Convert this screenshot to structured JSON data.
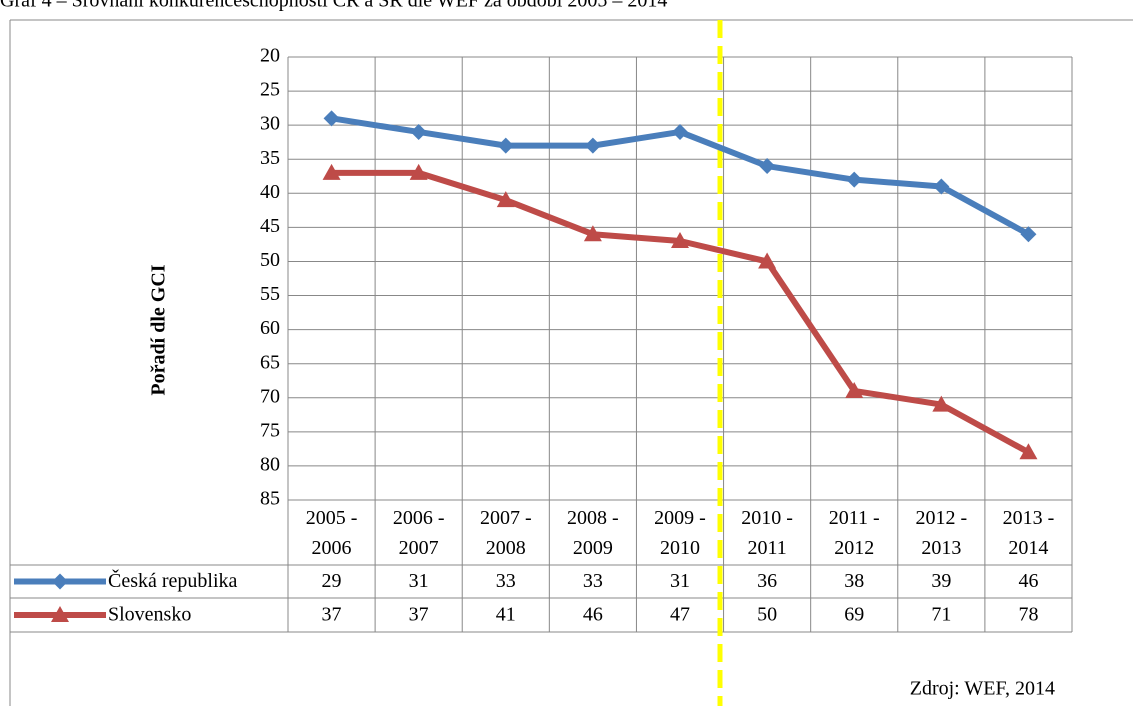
{
  "chart_data": {
    "type": "line",
    "title": "Graf 4 – Srovnání konkurenceschopnosti ČR a SR dle WEF za období 2005 – 2014",
    "y_label": "Pořadí dle GCI",
    "source": "Zdroj: WEF, 2014",
    "categories": [
      "2005 - 2006",
      "2006 - 2007",
      "2007 - 2008",
      "2008 - 2009",
      "2009 - 2010",
      "2010 - 2011",
      "2011 - 2012",
      "2012 - 2013",
      "2013 - 2014"
    ],
    "series": [
      {
        "name": "Česká republika",
        "color": "#4a7ebb",
        "marker": "diamond",
        "values": [
          29,
          31,
          33,
          33,
          31,
          36,
          38,
          39,
          46
        ]
      },
      {
        "name": "Slovensko",
        "color": "#be4b48",
        "marker": "triangle",
        "values": [
          37,
          37,
          41,
          46,
          47,
          50,
          69,
          71,
          78
        ]
      }
    ],
    "ylim": [
      20,
      85
    ],
    "y_inverted": true,
    "yticks": [
      20,
      25,
      30,
      35,
      40,
      45,
      50,
      55,
      60,
      65,
      70,
      75,
      80,
      85
    ],
    "grid": true
  }
}
